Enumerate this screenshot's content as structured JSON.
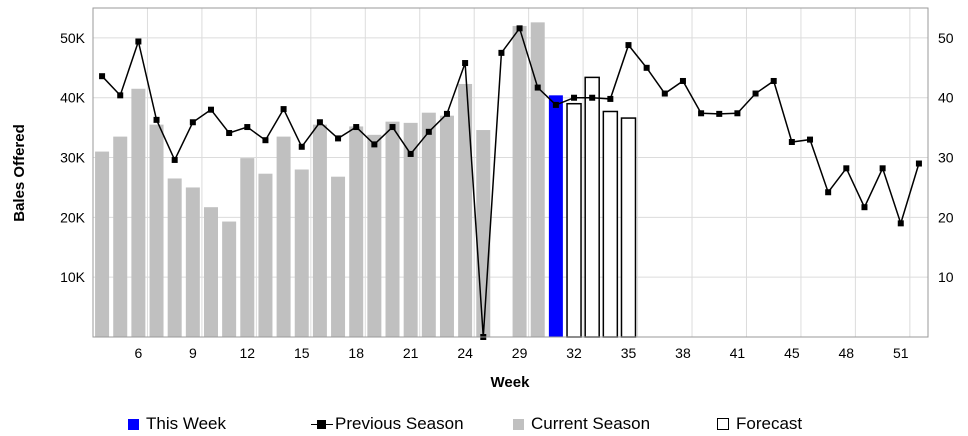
{
  "chart_data": {
    "type": "bar",
    "xlabel": "Week",
    "ylabel": "Bales Offered",
    "ylim": [
      0,
      55000
    ],
    "y_ticks": [
      10000,
      20000,
      30000,
      40000,
      50000
    ],
    "y_tick_labels": [
      "10K",
      "20K",
      "30K",
      "40K",
      "50K"
    ],
    "y2_ticks": [
      10,
      20,
      30,
      40,
      50
    ],
    "y2_tick_labels": [
      "10",
      "20",
      "30",
      "40",
      "50"
    ],
    "grid": true,
    "legend_position": "bottom",
    "x_tick_labels": [
      "6",
      "9",
      "12",
      "15",
      "18",
      "21",
      "24",
      "29",
      "32",
      "35",
      "38",
      "41",
      "45",
      "48",
      "51"
    ],
    "x_tick_positions": [
      3,
      6,
      9,
      12,
      15,
      18,
      21,
      24,
      27,
      30,
      33,
      36,
      39,
      42,
      45
    ],
    "slot_count": 46,
    "series": [
      {
        "name": "Current Season",
        "style": "bar",
        "color": "#c0c0c0",
        "values": [
          31000,
          33500,
          41500,
          35500,
          26500,
          25000,
          21700,
          19300,
          29900,
          27300,
          33500,
          28000,
          35500,
          26800,
          35200,
          33800,
          36000,
          35800,
          37500,
          37000,
          42300,
          34600,
          null,
          52000,
          52600
        ]
      },
      {
        "name": "This Week",
        "style": "bar",
        "color": "#0000ff",
        "slot": 25,
        "value": 40400
      },
      {
        "name": "Forecast",
        "style": "bar-outline",
        "color": "#000000",
        "slots": [
          26,
          27,
          28,
          29
        ],
        "values": [
          39000,
          43400,
          37700,
          36600
        ]
      },
      {
        "name": "Previous Season",
        "style": "line-marker",
        "color": "#000000",
        "values": [
          43600,
          40400,
          49400,
          36300,
          29600,
          35900,
          38000,
          34100,
          35100,
          32900,
          38100,
          31800,
          35900,
          33200,
          35100,
          32200,
          35100,
          30600,
          34300,
          37300,
          45800,
          0,
          47500,
          51600,
          41700,
          38800,
          40000,
          40000,
          39800,
          48800,
          45000,
          40700,
          42800,
          37400,
          37300,
          37400,
          40700,
          42800,
          32600,
          33000,
          24200,
          28200,
          21700,
          28200,
          19000,
          29000
        ]
      }
    ]
  },
  "legend": {
    "this_week": "This Week",
    "previous_season": "Previous Season",
    "current_season": "Current Season",
    "forecast": "Forecast"
  }
}
